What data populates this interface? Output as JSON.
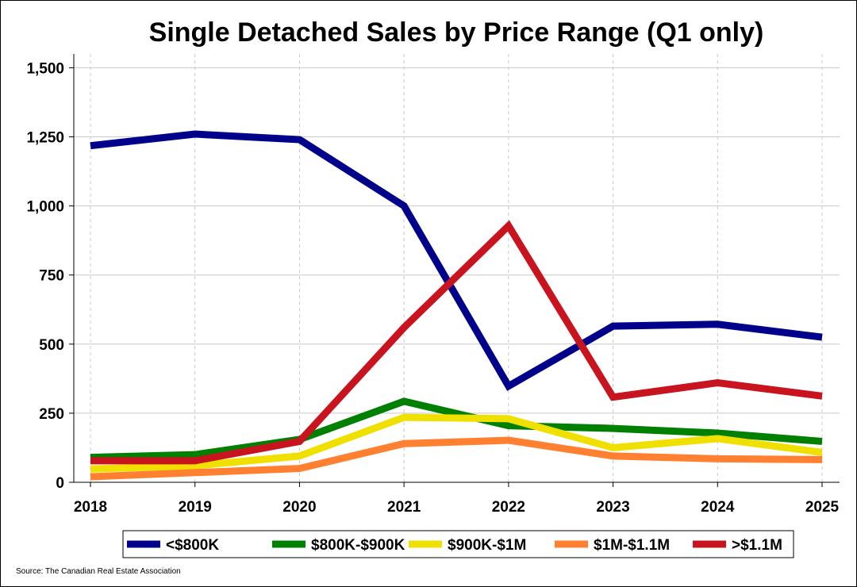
{
  "chart_data": {
    "type": "line",
    "title": "Single Detached Sales by Price Range (Q1 only)",
    "xlabel": "",
    "ylabel": "",
    "x": [
      "2018",
      "2019",
      "2020",
      "2021",
      "2022",
      "2023",
      "2024",
      "2025"
    ],
    "ylim": [
      0,
      1550
    ],
    "yticks": [
      0,
      250,
      500,
      750,
      1000,
      1250,
      1500
    ],
    "ytick_labels": [
      "0",
      "250",
      "500",
      "750",
      "1,000",
      "1,250",
      "1,500"
    ],
    "grid": true,
    "legend_position": "bottom",
    "series": [
      {
        "name": "<$800K",
        "color": "#00008b",
        "values": [
          1218,
          1260,
          1240,
          1000,
          348,
          565,
          572,
          525
        ]
      },
      {
        "name": "$800K-$900K",
        "color": "#008000",
        "values": [
          90,
          100,
          155,
          293,
          205,
          195,
          178,
          148
        ]
      },
      {
        "name": "$900K-$1M",
        "color": "#f0e000",
        "values": [
          48,
          60,
          95,
          235,
          230,
          125,
          158,
          108
        ]
      },
      {
        "name": "$1M-$1.1M",
        "color": "#ff8030",
        "values": [
          20,
          35,
          50,
          140,
          152,
          95,
          85,
          82
        ]
      },
      {
        "name": ">$1.1M",
        "color": "#c8141e",
        "values": [
          78,
          78,
          148,
          560,
          928,
          308,
          360,
          312
        ]
      }
    ],
    "source": "Source: The Canadian Real Estate Association"
  }
}
